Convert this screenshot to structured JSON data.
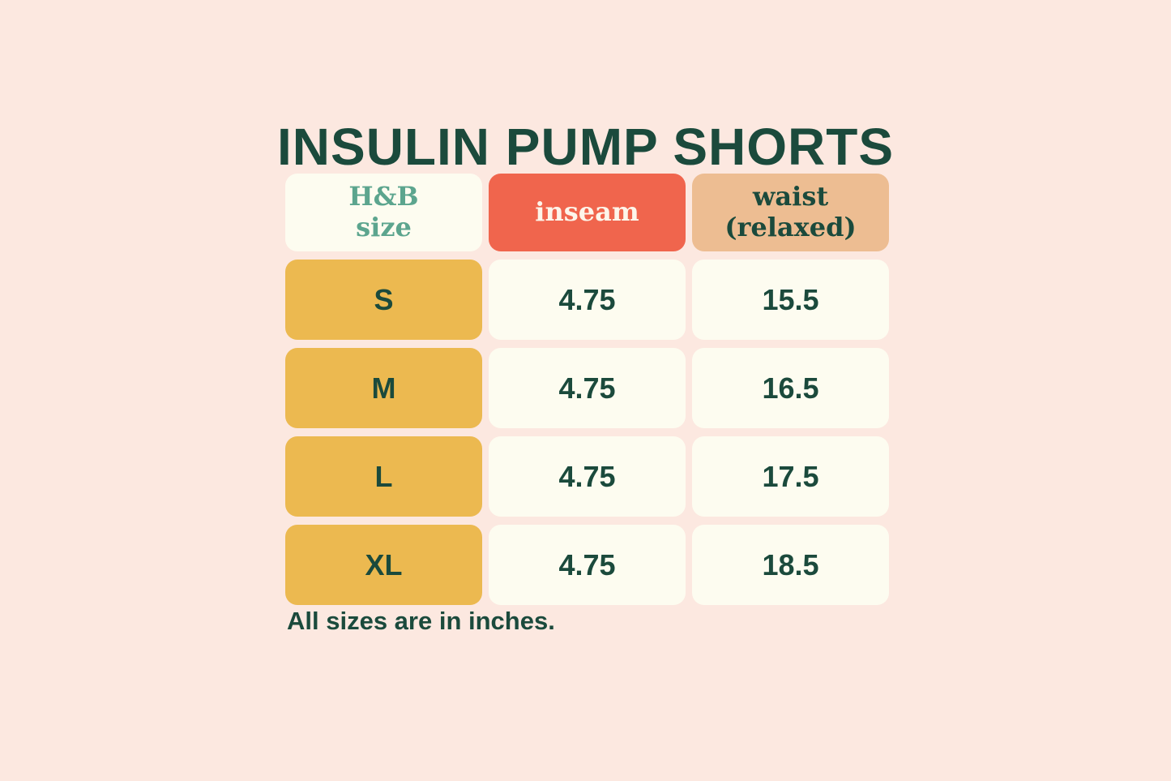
{
  "page": {
    "title": "INSULIN PUMP SHORTS",
    "footnote": "All sizes are in inches."
  },
  "table": {
    "columns": [
      {
        "name": "size",
        "lines": [
          "H&B",
          "size"
        ]
      },
      {
        "name": "inseam",
        "lines": [
          "inseam"
        ]
      },
      {
        "name": "waist",
        "lines": [
          "waist",
          "(relaxed)"
        ]
      }
    ],
    "rows": [
      {
        "size": "S",
        "inseam": "4.75",
        "waist": "15.5"
      },
      {
        "size": "M",
        "inseam": "4.75",
        "waist": "16.5"
      },
      {
        "size": "L",
        "inseam": "4.75",
        "waist": "17.5"
      },
      {
        "size": "XL",
        "inseam": "4.75",
        "waist": "18.5"
      }
    ]
  },
  "colors": {
    "bg": "#fce8e0",
    "dark-green": "#1b4a3c",
    "teal": "#5ca58e",
    "coral": "#f0654d",
    "tan": "#edbd92",
    "gold": "#ecb950",
    "cream": "#fdfcf0",
    "cream-text": "#fdf5ea"
  },
  "chart_data": {
    "type": "table",
    "title": "INSULIN PUMP SHORTS",
    "columns": [
      "H&B size",
      "inseam",
      "waist (relaxed)"
    ],
    "rows": [
      [
        "S",
        4.75,
        15.5
      ],
      [
        "M",
        4.75,
        16.5
      ],
      [
        "L",
        4.75,
        17.5
      ],
      [
        "XL",
        4.75,
        18.5
      ]
    ],
    "units": "inches",
    "note": "All sizes are in inches."
  }
}
